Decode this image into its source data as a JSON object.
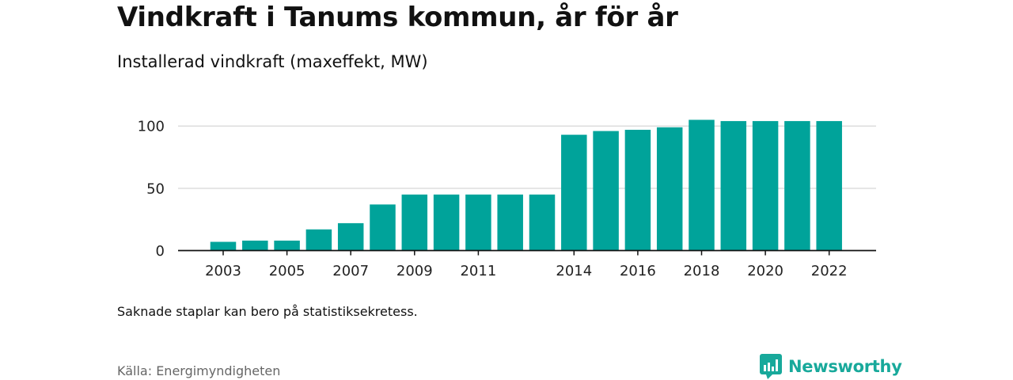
{
  "title": "Vindkraft i Tanums kommun, år för år",
  "subtitle": "Installerad vindkraft (maxeffekt, MW)",
  "note": "Saknade staplar kan bero på statistiksekretess.",
  "source": "Källa: Energimyndigheten",
  "brand": {
    "name": "Newsworthy",
    "icon": "newsworthy-logo-icon"
  },
  "colors": {
    "bar": "#00a39a",
    "grid": "#dddddd",
    "axis": "#111111",
    "brand": "#18a99b"
  },
  "chart_data": {
    "type": "bar",
    "title": "Vindkraft i Tanums kommun, år för år",
    "subtitle": "Installerad vindkraft (maxeffekt, MW)",
    "categories": [
      "2003",
      "2004",
      "2005",
      "2006",
      "2007",
      "2008",
      "2009",
      "2010",
      "2011",
      "2012",
      "2013",
      "2014",
      "2015",
      "2016",
      "2017",
      "2018",
      "2019",
      "2020",
      "2021",
      "2022"
    ],
    "values": [
      7,
      8,
      8,
      17,
      22,
      37,
      45,
      45,
      45,
      45,
      45,
      93,
      96,
      97,
      99,
      105,
      104,
      104,
      104,
      104
    ],
    "x_tick_labels": [
      "2003",
      "2005",
      "2007",
      "2009",
      "2011",
      "2014",
      "2016",
      "2018",
      "2020",
      "2022"
    ],
    "y_ticks": [
      0,
      50,
      100
    ],
    "ylim": [
      0,
      110
    ],
    "grid": true,
    "legend": "none"
  }
}
